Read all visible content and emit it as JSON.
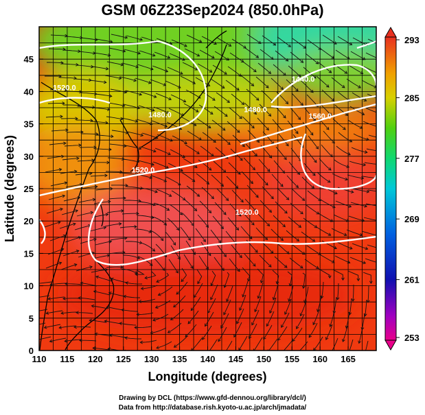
{
  "title": "GSM 06Z23Sep2024 (850.0hPa)",
  "map": {
    "xlabel": "Longitude (degrees)",
    "ylabel": "Latitude  (degrees)",
    "x_ticks": [
      "110",
      "115",
      "120",
      "125",
      "130",
      "135",
      "140",
      "145",
      "150",
      "155",
      "160",
      "165"
    ],
    "y_ticks": [
      "0",
      "5",
      "10",
      "15",
      "20",
      "25",
      "30",
      "35",
      "40",
      "45"
    ],
    "lon_range": [
      110,
      170
    ],
    "lat_range": [
      0,
      50
    ],
    "contour_labels": [
      {
        "text": "1520.0",
        "lon": 114.5,
        "lat": 40.2
      },
      {
        "text": "1440.0",
        "lon": 157.0,
        "lat": 41.5
      },
      {
        "text": "1480.0",
        "lon": 148.5,
        "lat": 36.8
      },
      {
        "text": "1480.0",
        "lon": 131.5,
        "lat": 36.0
      },
      {
        "text": "1560.0",
        "lon": 160.0,
        "lat": 35.8
      },
      {
        "text": "1520.0",
        "lon": 128.5,
        "lat": 27.5
      },
      {
        "text": "1520.0",
        "lon": 147.0,
        "lat": 21.0
      }
    ]
  },
  "colorbar": {
    "labels": [
      "293",
      "285",
      "277",
      "269",
      "261",
      "253"
    ],
    "min": 253,
    "max": 293
  },
  "credits": {
    "line1": "Drawing by DCL (https://www.gfd-dennou.org/library/dcl/)",
    "line2": "Data from http://database.rish.kyoto-u.ac.jp/arch/jmadata/"
  }
}
